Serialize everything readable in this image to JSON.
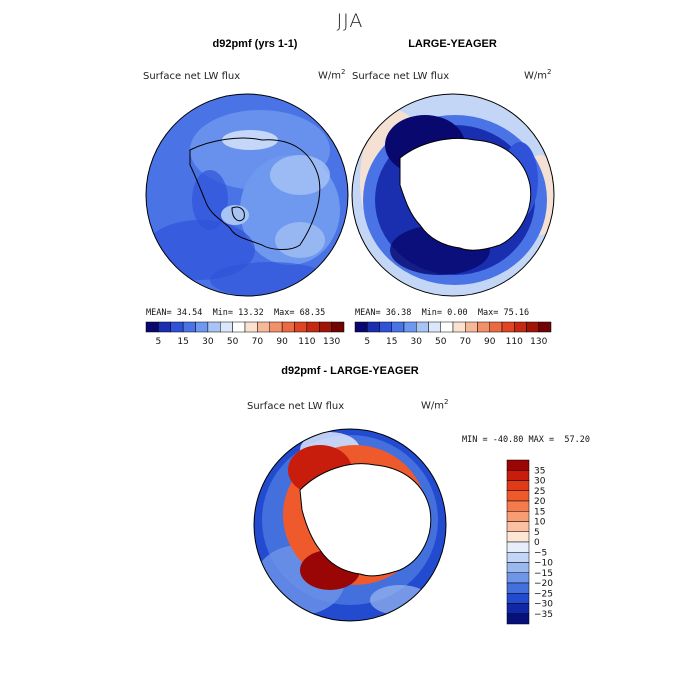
{
  "title": "JJA",
  "panels": [
    {
      "id": "left",
      "title": "d92pmf (yrs 1-1)",
      "field": "Surface net LW flux",
      "units": "W/m",
      "units_exp": "2",
      "stats": {
        "mean_label": "MEAN=",
        "mean": "34.54",
        "min_label": "Min=",
        "min": "13.32",
        "max_label": "Max=",
        "max": "68.35"
      }
    },
    {
      "id": "right",
      "title": "LARGE-YEAGER",
      "field": "Surface net LW flux",
      "units": "W/m",
      "units_exp": "2",
      "stats": {
        "mean_label": "MEAN=",
        "mean": "36.38",
        "min_label": "Min=",
        "min": "0.00",
        "max_label": "Max=",
        "max": "75.16"
      }
    },
    {
      "id": "diff",
      "title": "d92pmf - LARGE-YEAGER",
      "field": "Surface net LW flux",
      "units": "W/m",
      "units_exp": "2",
      "stats_text": "MIN = -40.80 MAX =  57.20"
    }
  ],
  "chart_data": [
    {
      "type": "heatmap",
      "title": "d92pmf (yrs 1-1)",
      "projection": "south polar stereographic",
      "colorbar": {
        "orientation": "horizontal",
        "labels": [
          "5",
          "15",
          "30",
          "50",
          "70",
          "90",
          "110",
          "130"
        ],
        "colors": [
          "#08086e",
          "#1a2fb0",
          "#2f52d8",
          "#4a73e6",
          "#6f98ef",
          "#a8c4f5",
          "#dbe8fb",
          "#ffffff",
          "#fbe1d0",
          "#f7b89a",
          "#f2906a",
          "#ea6a44",
          "#dd4525",
          "#c42a12",
          "#a01508",
          "#700404"
        ]
      },
      "stats": {
        "mean": 34.54,
        "min": 13.32,
        "max": 68.35
      }
    },
    {
      "type": "heatmap",
      "title": "LARGE-YEAGER",
      "projection": "south polar stereographic",
      "colorbar": {
        "orientation": "horizontal",
        "labels": [
          "5",
          "15",
          "30",
          "50",
          "70",
          "90",
          "110",
          "130"
        ]
      },
      "stats": {
        "mean": 36.38,
        "min": 0.0,
        "max": 75.16
      }
    },
    {
      "type": "heatmap",
      "title": "d92pmf - LARGE-YEAGER",
      "projection": "south polar stereographic",
      "colorbar": {
        "orientation": "vertical",
        "labels": [
          "35",
          "30",
          "25",
          "20",
          "15",
          "10",
          "5",
          "0",
          "−5",
          "−10",
          "−15",
          "−20",
          "−25",
          "−30",
          "−35"
        ],
        "colors": [
          "#9a0606",
          "#c81c0c",
          "#e03a18",
          "#ef5a2c",
          "#f57a4c",
          "#f89c74",
          "#fbc0a2",
          "#fde6d6",
          "#e6eefb",
          "#c4d6f6",
          "#9ab8f0",
          "#6f95e8",
          "#4470dd",
          "#224bd0",
          "#1028a8",
          "#06107a"
        ]
      },
      "stats": {
        "min": -40.8,
        "max": 57.2
      }
    }
  ]
}
